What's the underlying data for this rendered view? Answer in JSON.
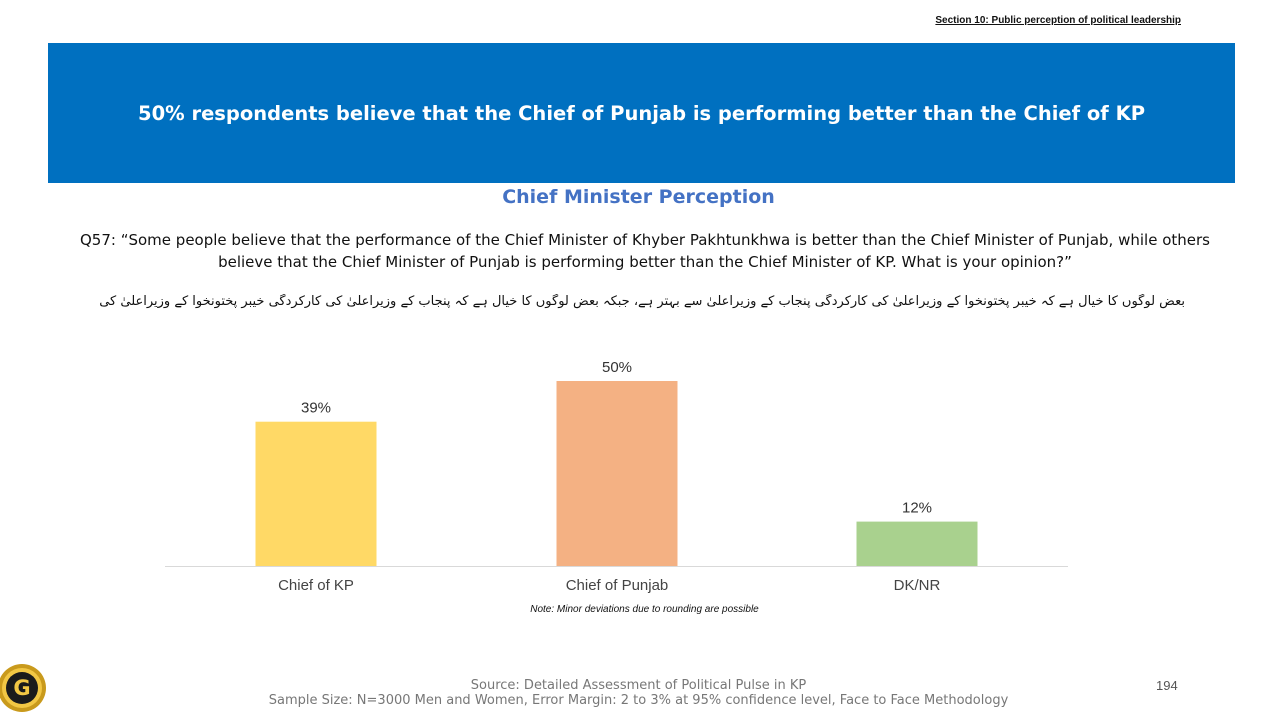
{
  "header": {
    "section_label": "Section 10: Public perception of political leadership",
    "banner_text": "50% respondents believe that the Chief of Punjab is performing better than the Chief of KP"
  },
  "question": {
    "line1": "Q57: “Some people believe that the performance of the Chief Minister of Khyber Pakhtunkhwa is better than the Chief Minister of Punjab, while others",
    "line2": "believe that the Chief Minister of Punjab is performing better than the Chief Minister of KP. What is your opinion?”",
    "urdu": "بعض لوگوں کا خیال ہے کہ خیبر پختونخوا کے وزیراعلیٰ کی کارکردگی پنجاب کے وزیراعلیٰ سے بہتر ہے، جبکہ بعض لوگوں کا خیال ہے کہ پنجاب کے وزیراعلیٰ کی کارکردگی خیبر پختونخوا کے وزیراعلیٰ کی کارکردگی سے بہتر ہے۔ آپ کی اس بارے میں کیا رائے ہے؟"
  },
  "chart_data": {
    "type": "bar",
    "title": "Chief Minister Perception",
    "categories": [
      "Chief of KP",
      "Chief of Punjab",
      "DK/NR"
    ],
    "values": [
      39,
      50,
      12
    ],
    "labels": [
      "39%",
      "50%",
      "12%"
    ],
    "colors": [
      "#ffd966",
      "#f4b183",
      "#a9d18e"
    ],
    "ylim": [
      0,
      50
    ],
    "grid": false,
    "legend": "none"
  },
  "footer": {
    "note": "Note: Minor deviations due to rounding are possible",
    "source_line1": "Source: Detailed Assessment of Political Pulse in KP",
    "source_line2": "Sample Size: N=3000 Men and Women, Error Margin: 2 to 3% at 95% confidence level, Face to Face Methodology",
    "page_number": "194",
    "logo_letter": "G",
    "logo_icon": "gallup-g-logo-icon"
  }
}
